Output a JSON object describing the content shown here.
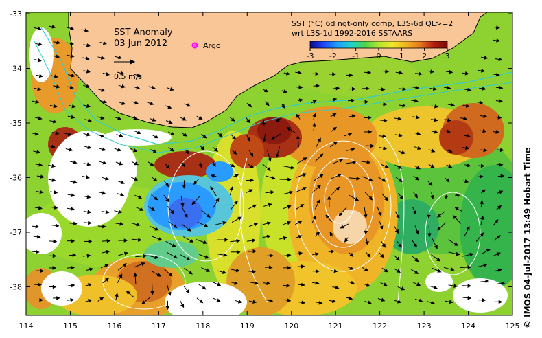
{
  "title": {
    "line1": "SST Anomaly",
    "line2": "03 Jun 2012"
  },
  "legend": {
    "argo_label": "Argo",
    "argo_color": "#ff00ff",
    "velocity_label": "0.5 m/s"
  },
  "colorbar": {
    "line1": "SST (°C) 6d ngt-only comp, L3S-6d QL>=2",
    "line2": "wrt L3S-1d 1992-2016 SSTAARS",
    "ticks": [
      "-3",
      "-2",
      "-1",
      "0",
      "1",
      "2",
      "3"
    ],
    "stops": [
      "#0a0a8c",
      "#1e46ff",
      "#1ea0ff",
      "#20d2c8",
      "#4cd24c",
      "#b4e632",
      "#f0e628",
      "#f0b41e",
      "#e6781e",
      "#b41e10",
      "#780a0a"
    ]
  },
  "axes": {
    "x_ticks": [
      "114",
      "115",
      "116",
      "117",
      "118",
      "119",
      "120",
      "121",
      "122",
      "123",
      "124",
      "125"
    ],
    "y_ticks": [
      "-33",
      "-34",
      "-35",
      "-36",
      "-37",
      "-38"
    ]
  },
  "colors": {
    "land": "#f9c698",
    "missing": "#ffffff",
    "contour": "#ffffff",
    "shelf_line": "#33cccc"
  },
  "credit": "© IMOS 04-Jul-2017 13:49 Hobart Time"
}
